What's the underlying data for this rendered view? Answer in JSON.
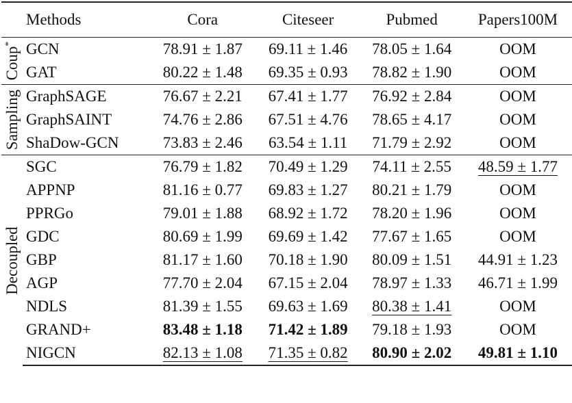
{
  "columns": [
    "Methods",
    "Cora",
    "Citeseer",
    "Pubmed",
    "Papers100M"
  ],
  "groups": [
    {
      "label": "Coup",
      "label_sup": "*",
      "rows": [
        {
          "method": "GCN",
          "cells": [
            {
              "v": "78.91 ± 1.87"
            },
            {
              "v": "69.11 ± 1.46"
            },
            {
              "v": "78.05 ± 1.64"
            },
            {
              "v": "OOM"
            }
          ]
        },
        {
          "method": "GAT",
          "cells": [
            {
              "v": "80.22 ± 1.48"
            },
            {
              "v": "69.35 ± 0.93"
            },
            {
              "v": "78.82 ± 1.90"
            },
            {
              "v": "OOM"
            }
          ]
        }
      ]
    },
    {
      "label": "Sampling",
      "label_sup": "",
      "rows": [
        {
          "method": "GraphSAGE",
          "cells": [
            {
              "v": "76.67 ± 2.21"
            },
            {
              "v": "67.41 ± 1.77"
            },
            {
              "v": "76.92 ± 2.84"
            },
            {
              "v": "OOM"
            }
          ]
        },
        {
          "method": "GraphSAINT",
          "cells": [
            {
              "v": "74.76 ± 2.86"
            },
            {
              "v": "67.51 ± 4.76"
            },
            {
              "v": "78.65 ± 4.17"
            },
            {
              "v": "OOM"
            }
          ]
        },
        {
          "method": "ShaDow-GCN",
          "cells": [
            {
              "v": "73.83 ± 2.46"
            },
            {
              "v": "63.54 ± 1.11"
            },
            {
              "v": "71.79 ± 2.92"
            },
            {
              "v": "OOM"
            }
          ]
        }
      ]
    },
    {
      "label": "Decoupled",
      "label_sup": "",
      "rows": [
        {
          "method": "SGC",
          "cells": [
            {
              "v": "76.79 ± 1.82"
            },
            {
              "v": "70.49 ± 1.29"
            },
            {
              "v": "74.11 ± 2.55"
            },
            {
              "v": "48.59 ± 1.77",
              "s": "underline"
            }
          ]
        },
        {
          "method": "APPNP",
          "cells": [
            {
              "v": "81.16 ± 0.77"
            },
            {
              "v": "69.83 ± 1.27"
            },
            {
              "v": "80.21 ± 1.79"
            },
            {
              "v": "OOM"
            }
          ]
        },
        {
          "method": "PPRGo",
          "cells": [
            {
              "v": "79.01 ± 1.88"
            },
            {
              "v": "68.92 ± 1.72"
            },
            {
              "v": "78.20 ± 1.96"
            },
            {
              "v": "OOM"
            }
          ]
        },
        {
          "method": "GDC",
          "cells": [
            {
              "v": "80.69 ± 1.99"
            },
            {
              "v": "69.69 ± 1.42"
            },
            {
              "v": "77.67 ± 1.65"
            },
            {
              "v": "OOM"
            }
          ]
        },
        {
          "method": "GBP",
          "cells": [
            {
              "v": "81.17 ± 1.60"
            },
            {
              "v": "70.18 ± 1.90"
            },
            {
              "v": "80.09 ± 1.51"
            },
            {
              "v": "44.91 ± 1.23"
            }
          ]
        },
        {
          "method": "AGP",
          "cells": [
            {
              "v": "77.70 ± 2.04"
            },
            {
              "v": "67.15 ± 2.04"
            },
            {
              "v": "78.97 ± 1.33"
            },
            {
              "v": "46.71 ± 1.99"
            }
          ]
        },
        {
          "method": "NDLS",
          "cells": [
            {
              "v": "81.39 ± 1.55"
            },
            {
              "v": "69.63 ± 1.69"
            },
            {
              "v": "80.38 ± 1.41",
              "s": "underline"
            },
            {
              "v": "OOM"
            }
          ]
        },
        {
          "method": "GRAND+",
          "cells": [
            {
              "v": "83.48 ± 1.18",
              "s": "bold"
            },
            {
              "v": "71.42 ± 1.89",
              "s": "bold"
            },
            {
              "v": "79.18 ± 1.93"
            },
            {
              "v": "OOM"
            }
          ]
        },
        {
          "method": "NIGCN",
          "cells": [
            {
              "v": "82.13 ± 1.08",
              "s": "underline"
            },
            {
              "v": "71.35 ± 0.82",
              "s": "underline"
            },
            {
              "v": "80.90 ± 2.02",
              "s": "bold"
            },
            {
              "v": "49.81 ± 1.10",
              "s": "bold"
            }
          ]
        }
      ]
    }
  ]
}
